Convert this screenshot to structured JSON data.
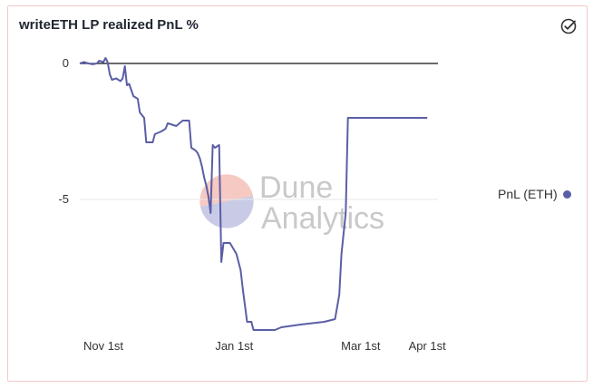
{
  "title": "writeETH LP realized PnL %",
  "watermark": {
    "line1": "Dune",
    "line2": "Analytics"
  },
  "colors": {
    "line": "#5b5ea6",
    "zero_line": "#111111",
    "border": "#f3c9c9",
    "wm_top": "#f6c9c2",
    "wm_bottom": "#c9cbe6"
  },
  "icons": {
    "header": "check-circle-icon"
  },
  "legend": {
    "label": "PnL (ETH)"
  },
  "chart_data": {
    "type": "line",
    "title": "writeETH LP realized PnL %",
    "xlabel": "",
    "ylabel": "",
    "x_ticks": [
      "Nov 1st",
      "Jan 1st",
      "Mar 1st",
      "Apr 1st"
    ],
    "y_ticks": [
      "0",
      "-5"
    ],
    "y_tick_values": [
      0,
      -5
    ],
    "xlim": [
      "2021-10-21",
      "2022-04-06"
    ],
    "ylim": [
      -9.9,
      0.35
    ],
    "grid": true,
    "legend_position": "right",
    "series": [
      {
        "name": "PnL (ETH)",
        "points": [
          [
            "2021-10-21",
            0.0
          ],
          [
            "2021-10-23",
            0.05
          ],
          [
            "2021-10-25",
            0.0
          ],
          [
            "2021-10-27",
            -0.03
          ],
          [
            "2021-10-29",
            0.0
          ],
          [
            "2021-10-30",
            0.1
          ],
          [
            "2021-11-01",
            0.05
          ],
          [
            "2021-11-02",
            0.2
          ],
          [
            "2021-11-03",
            0.05
          ],
          [
            "2021-11-04",
            -0.4
          ],
          [
            "2021-11-05",
            -0.6
          ],
          [
            "2021-11-07",
            -0.55
          ],
          [
            "2021-11-09",
            -0.65
          ],
          [
            "2021-11-10",
            -0.55
          ],
          [
            "2021-11-11",
            -0.1
          ],
          [
            "2021-11-12",
            -0.8
          ],
          [
            "2021-11-13",
            -0.75
          ],
          [
            "2021-11-15",
            -1.2
          ],
          [
            "2021-11-17",
            -1.3
          ],
          [
            "2021-11-18",
            -1.8
          ],
          [
            "2021-11-20",
            -2.0
          ],
          [
            "2021-11-21",
            -2.9
          ],
          [
            "2021-11-24",
            -2.9
          ],
          [
            "2021-11-25",
            -2.6
          ],
          [
            "2021-11-28",
            -2.5
          ],
          [
            "2021-11-30",
            -2.4
          ],
          [
            "2021-12-01",
            -2.2
          ],
          [
            "2021-12-05",
            -2.3
          ],
          [
            "2021-12-08",
            -2.1
          ],
          [
            "2021-12-11",
            -2.1
          ],
          [
            "2021-12-12",
            -3.1
          ],
          [
            "2021-12-14",
            -3.2
          ],
          [
            "2021-12-15",
            -3.3
          ],
          [
            "2021-12-16",
            -3.5
          ],
          [
            "2021-12-17",
            -3.8
          ],
          [
            "2021-12-18",
            -4.2
          ],
          [
            "2021-12-19",
            -4.5
          ],
          [
            "2021-12-20",
            -4.9
          ],
          [
            "2021-12-21",
            -5.5
          ],
          [
            "2021-12-22",
            -3.0
          ],
          [
            "2021-12-23",
            -3.1
          ],
          [
            "2021-12-25",
            -3.0
          ],
          [
            "2021-12-26",
            -7.3
          ],
          [
            "2021-12-27",
            -6.6
          ],
          [
            "2021-12-30",
            -6.6
          ],
          [
            "2022-01-02",
            -7.0
          ],
          [
            "2022-01-04",
            -7.6
          ],
          [
            "2022-01-05",
            -8.3
          ],
          [
            "2022-01-07",
            -9.5
          ],
          [
            "2022-01-09",
            -9.5
          ],
          [
            "2022-01-10",
            -9.8
          ],
          [
            "2022-01-20",
            -9.8
          ],
          [
            "2022-01-23",
            -9.7
          ],
          [
            "2022-02-01",
            -9.6
          ],
          [
            "2022-02-12",
            -9.5
          ],
          [
            "2022-02-17",
            -9.4
          ],
          [
            "2022-02-19",
            -8.5
          ],
          [
            "2022-02-20",
            -7.0
          ],
          [
            "2022-02-22",
            -5.5
          ],
          [
            "2022-02-23",
            -2.0
          ],
          [
            "2022-02-28",
            -2.0
          ],
          [
            "2022-03-01",
            -2.0
          ],
          [
            "2022-03-05",
            -2.0
          ],
          [
            "2022-03-10",
            -2.0
          ],
          [
            "2022-03-15",
            -2.0
          ],
          [
            "2022-03-20",
            -2.0
          ],
          [
            "2022-03-25",
            -2.0
          ],
          [
            "2022-04-01",
            -2.0
          ]
        ]
      }
    ]
  }
}
